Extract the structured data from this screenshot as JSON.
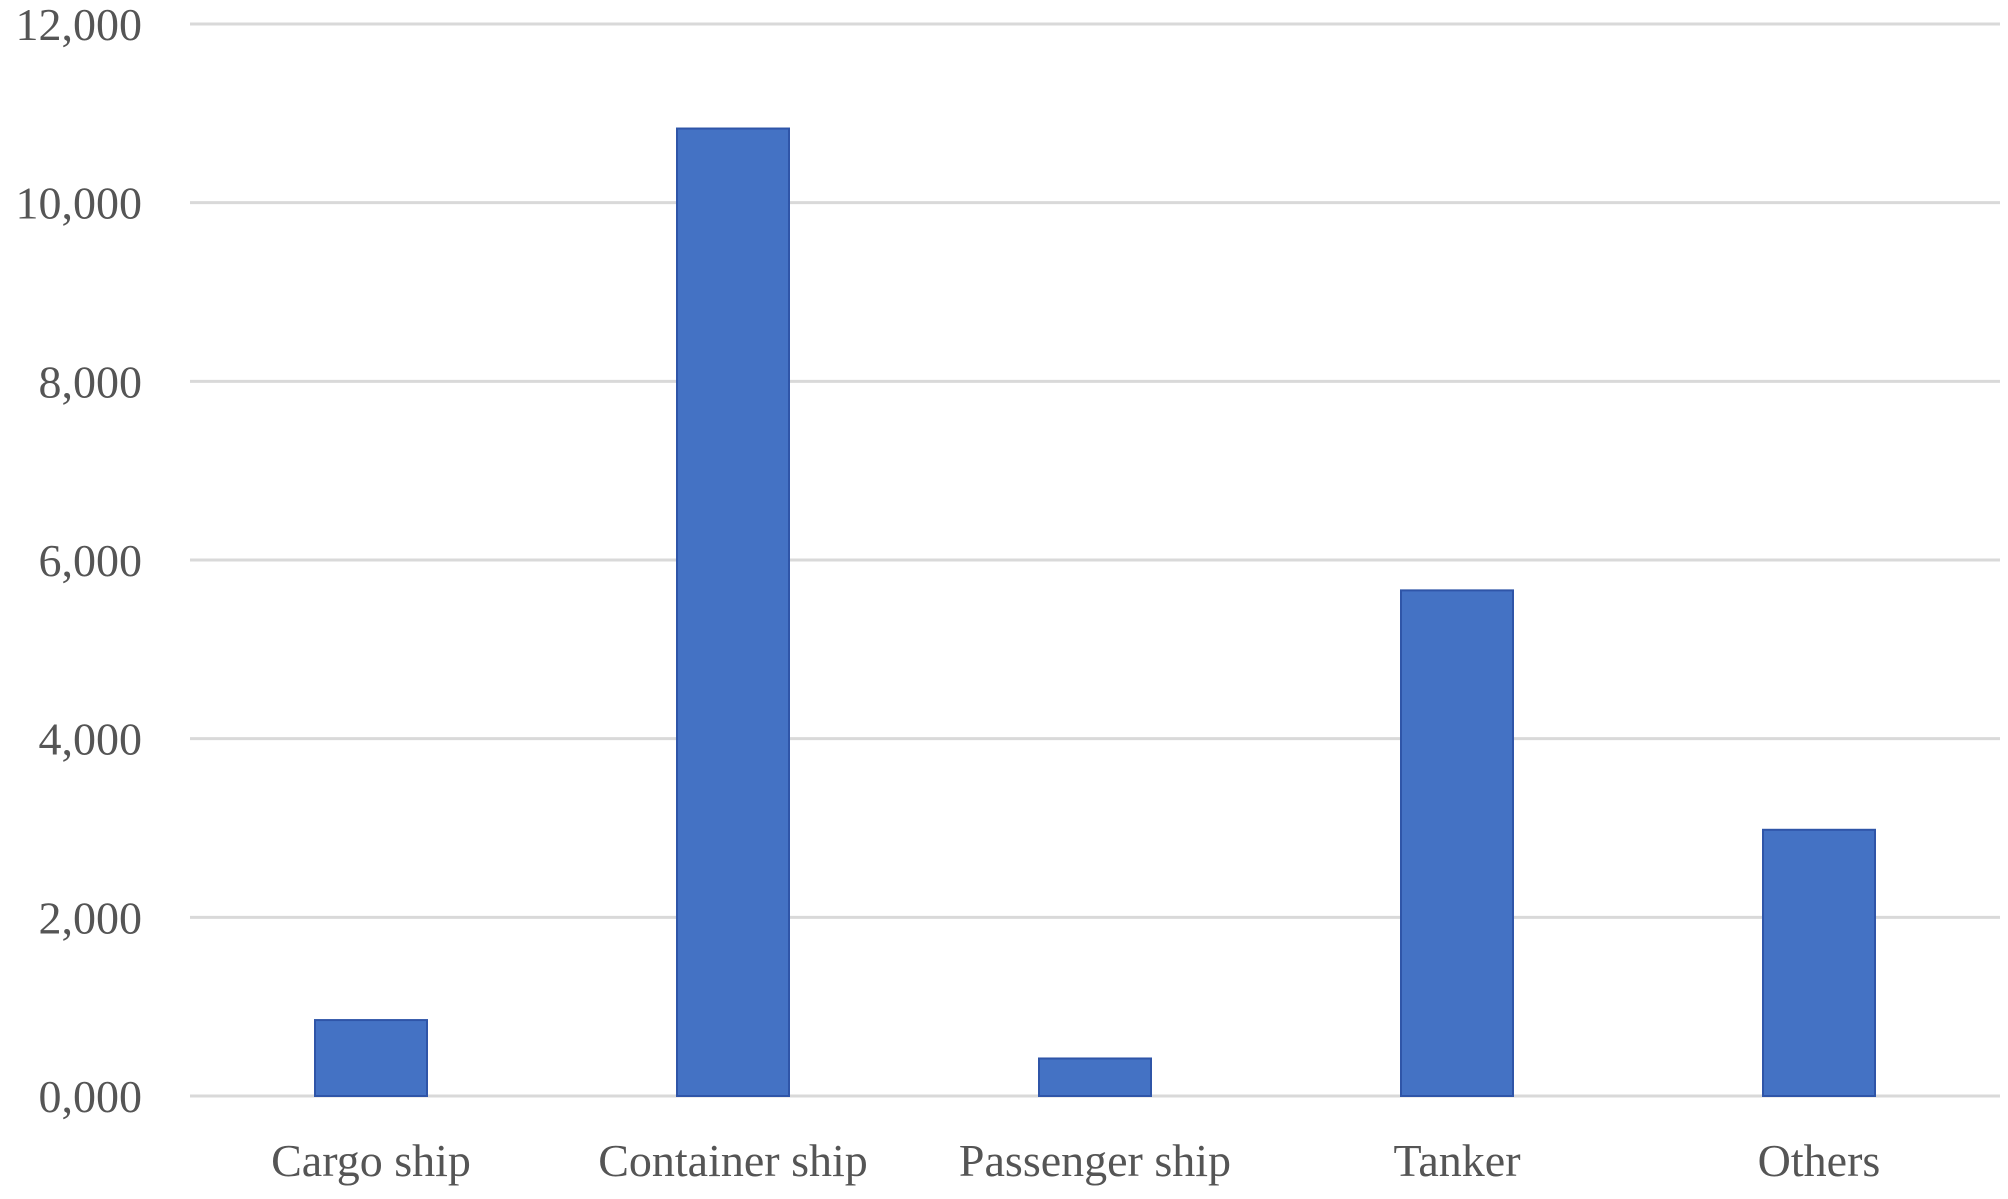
{
  "chart_data": {
    "type": "bar",
    "categories": [
      "Cargo ship",
      "Container ship",
      "Passenger ship",
      "Tanker",
      "Others"
    ],
    "values": [
      850,
      10830,
      420,
      5660,
      2980
    ],
    "yticks": [
      "0,000",
      "2,000",
      "4,000",
      "6,000",
      "8,000",
      "10,000",
      "12,000"
    ],
    "ylim": [
      0,
      12000
    ],
    "grid": true,
    "title": "",
    "xlabel": "",
    "ylabel": "",
    "bar_color": "#4472c4",
    "grid_color": "#d9d9d9"
  }
}
